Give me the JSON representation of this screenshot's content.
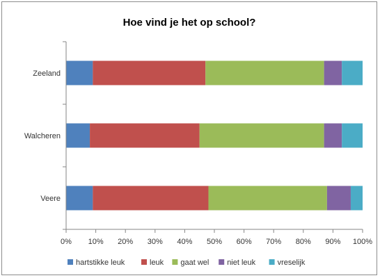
{
  "chart_data": {
    "type": "bar",
    "orientation": "horizontal",
    "stacked": "percent",
    "title": "Hoe vind je het op school?",
    "categories": [
      "Zeeland",
      "Walcheren",
      "Veere"
    ],
    "series": [
      {
        "name": "hartstikke leuk",
        "color": "#4f81bd",
        "values": [
          9,
          8,
          9
        ]
      },
      {
        "name": "leuk",
        "color": "#c0504d",
        "values": [
          38,
          37,
          39
        ]
      },
      {
        "name": "gaat wel",
        "color": "#9bbb59",
        "values": [
          40,
          42,
          40
        ]
      },
      {
        "name": "niet leuk",
        "color": "#8064a2",
        "values": [
          6,
          6,
          8
        ]
      },
      {
        "name": "vreselijk",
        "color": "#4bacc6",
        "values": [
          7,
          7,
          4
        ]
      }
    ],
    "x_ticks": [
      "0%",
      "10%",
      "20%",
      "30%",
      "40%",
      "50%",
      "60%",
      "70%",
      "80%",
      "90%",
      "100%"
    ],
    "xlim": [
      0,
      100
    ],
    "grid": false,
    "legend_position": "bottom"
  }
}
